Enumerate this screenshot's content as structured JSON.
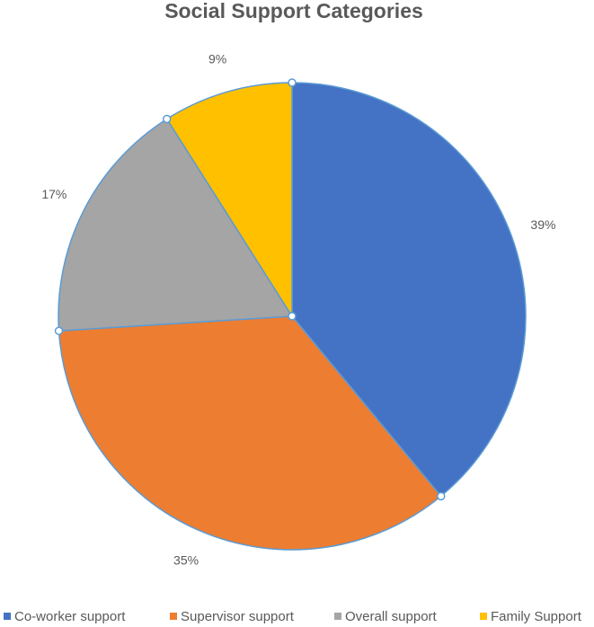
{
  "chart_data": {
    "type": "pie",
    "title": "Social Support Categories",
    "categories": [
      "Co-worker support",
      "Supervisor support",
      "Overall support",
      "Family Support"
    ],
    "values": [
      39,
      35,
      17,
      9
    ],
    "value_labels": [
      "39%",
      "35%",
      "17%",
      "9%"
    ],
    "colors": [
      "#4472c4",
      "#ed7d31",
      "#a5a5a5",
      "#ffc000"
    ],
    "legend": "bottom"
  }
}
